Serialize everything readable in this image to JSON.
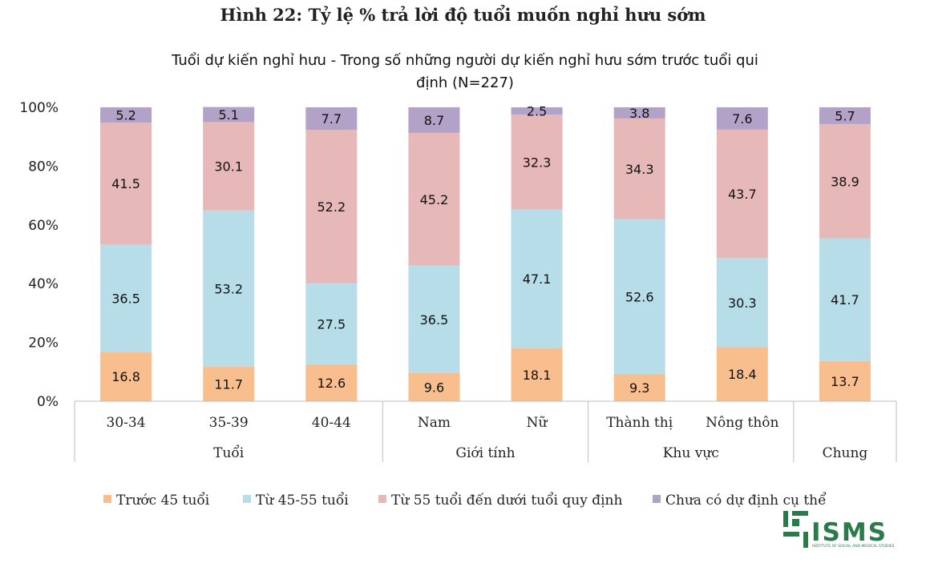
{
  "figure_title": "Hình 22: Tỷ lệ % trả lời độ tuổi muốn nghỉ hưu sớm",
  "chart_data": {
    "type": "bar",
    "stacked": true,
    "title": "Tuổi dự kiến nghỉ hưu - Trong số những người dự kiến nghỉ hưu sớm trước tuổi qui",
    "title_line2": "định (N=227)",
    "categories": [
      "30-34",
      "35-39",
      "40-44",
      "Nam",
      "Nữ",
      "Thành thị",
      "Nông thôn",
      ""
    ],
    "groups": [
      {
        "label": "Tuổi",
        "categories": [
          "30-34",
          "35-39",
          "40-44"
        ]
      },
      {
        "label": "Giới tính",
        "categories": [
          "Nam",
          "Nữ"
        ]
      },
      {
        "label": "Khu vực",
        "categories": [
          "Thành thị",
          "Nông thôn"
        ]
      },
      {
        "label": "Chung",
        "categories": [
          ""
        ]
      }
    ],
    "series": [
      {
        "name": "Trước 45 tuổi",
        "color": "#f9be8d",
        "values": [
          16.8,
          11.7,
          12.6,
          9.6,
          18.1,
          9.3,
          18.4,
          13.7
        ]
      },
      {
        "name": "Từ 45-55 tuổi",
        "color": "#b7dde8",
        "values": [
          36.5,
          53.2,
          27.5,
          36.5,
          47.1,
          52.6,
          30.3,
          41.7
        ]
      },
      {
        "name": "Từ 55 tuổi đến dưới tuổi quy định",
        "color": "#e6b9b8",
        "values": [
          41.5,
          30.1,
          52.2,
          45.2,
          32.3,
          34.3,
          43.7,
          38.9
        ]
      },
      {
        "name": "Chưa có dự định cụ thể",
        "color": "#b3a2c7",
        "values": [
          5.2,
          5.1,
          7.7,
          8.7,
          2.5,
          3.8,
          7.6,
          5.7
        ]
      }
    ],
    "y_ticks": [
      "0%",
      "20%",
      "40%",
      "60%",
      "80%",
      "100%"
    ],
    "ylim": [
      0,
      100
    ]
  },
  "logo": {
    "text": "ISMS",
    "subtext": "INSTITUTE OF SOCIAL AND MEDICAL STUDIES"
  }
}
